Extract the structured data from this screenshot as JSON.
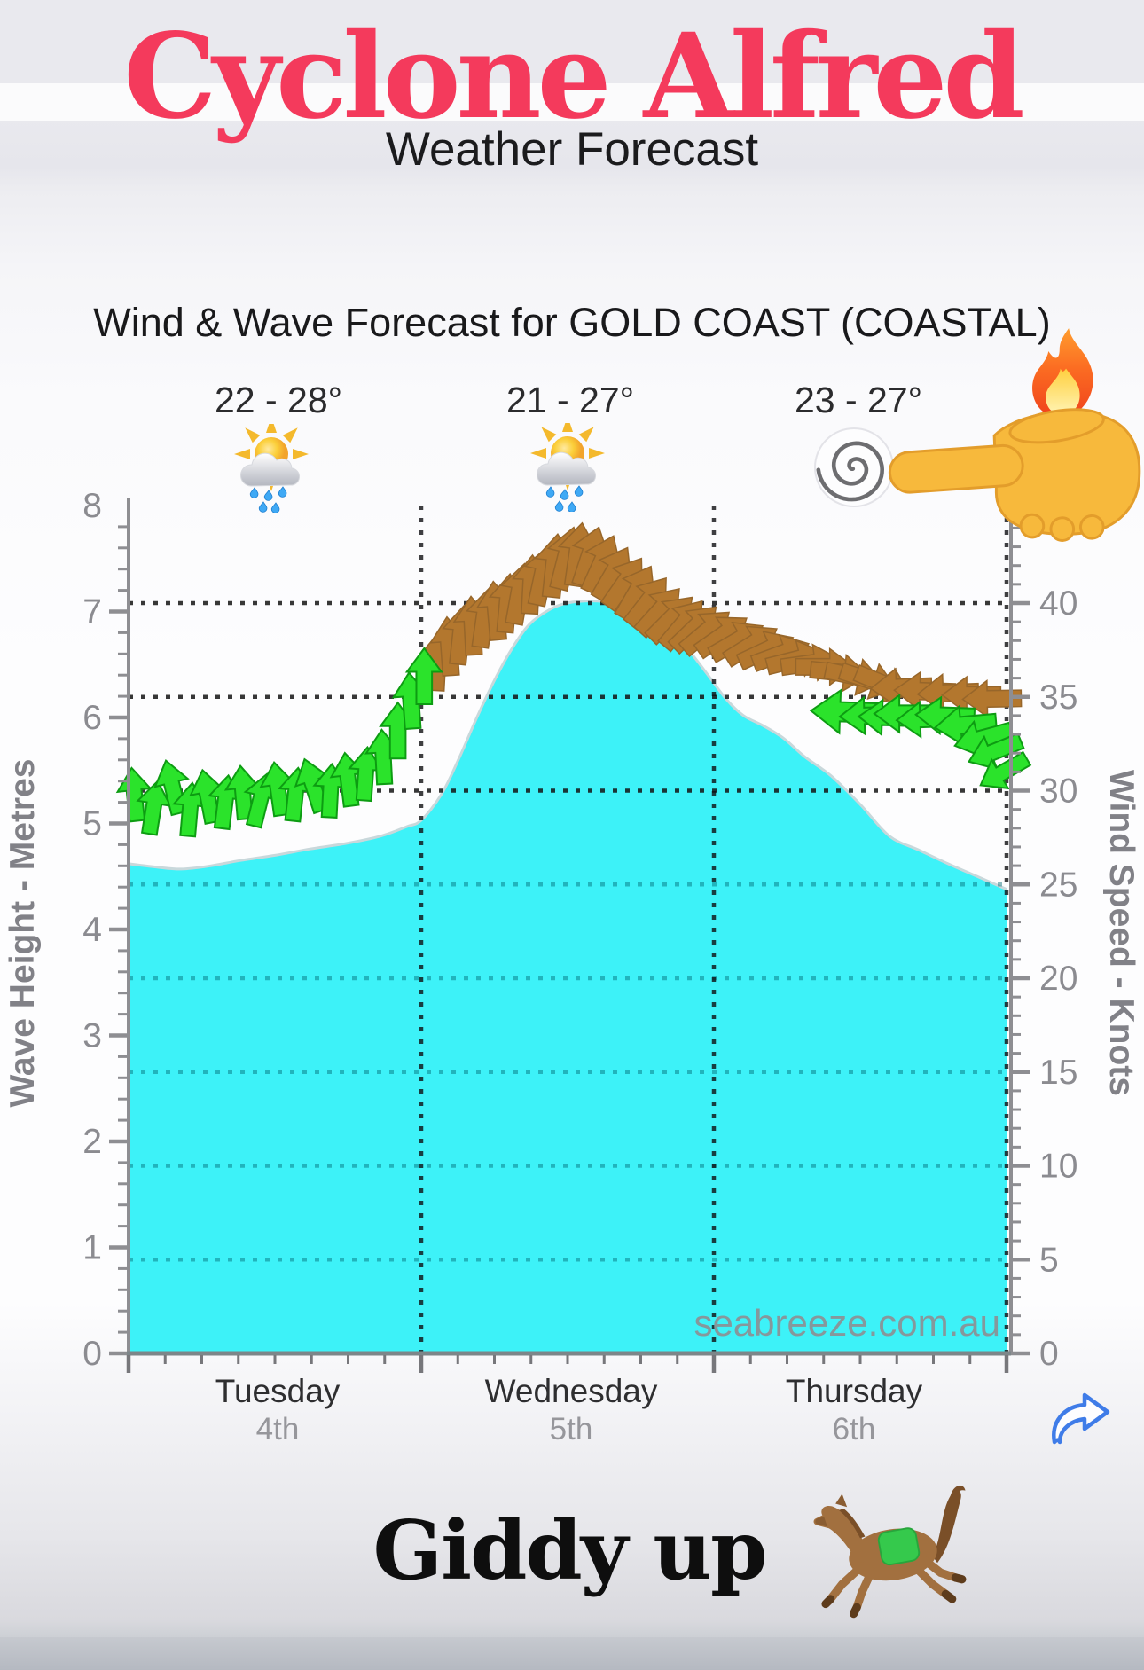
{
  "header": {
    "title": "Cyclone Alfred",
    "subtitle": "Weather Forecast",
    "title_color": "#f43a5c"
  },
  "chart": {
    "title": "Wind & Wave Forecast for GOLD COAST (COASTAL)",
    "watermark": "seabreeze.com.au",
    "days": [
      {
        "name": "Tuesday",
        "date": "4th",
        "temp": "22 - 28°",
        "icon": "sun-behind-rain-cloud"
      },
      {
        "name": "Wednesday",
        "date": "5th",
        "temp": "21 - 27°",
        "icon": "sun-behind-rain-cloud"
      },
      {
        "name": "Thursday",
        "date": "6th",
        "temp": "23 - 27°",
        "icon": "cyclone"
      }
    ],
    "decorations": [
      "fire-emoji",
      "backhand-index-pointing-left-emoji"
    ]
  },
  "footer": {
    "caption": "Giddy up",
    "emoji": "horse-galloping"
  },
  "colors": {
    "wave_fill": "#3DF2F8",
    "wave_edge": "#c9d8db",
    "arrow_green": "#2BE32B",
    "arrow_green_edge": "#0d9c12",
    "arrow_brown": "#B3772E",
    "arrow_brown_edge": "#97662a",
    "grid_black": "rgba(20,20,20,0.85)",
    "grid_teal": "rgba(0,105,115,0.45)",
    "axis_gray": "#8e8e92",
    "label_gray": "#8b8b90",
    "baseline": "#7d8689",
    "share_blue": "#3f7ce8"
  },
  "chart_data": {
    "type": "area",
    "title": "Wind & Wave Forecast for GOLD COAST (COASTAL)",
    "x_axis": {
      "labels": [
        "Tuesday",
        "Wednesday",
        "Thursday"
      ],
      "dates": [
        "4th",
        "5th",
        "6th"
      ],
      "domain_days": [
        0,
        3
      ]
    },
    "left_axis": {
      "label": "Wave Height - Metres",
      "min": 0,
      "max": 8,
      "major_tick": 1,
      "minor_tick": 0.2,
      "ticks": [
        0,
        1,
        2,
        3,
        4,
        5,
        6,
        7,
        8
      ]
    },
    "right_axis": {
      "label": "Wind Speed - Knots",
      "min": 0,
      "max": 45,
      "major_tick": 5,
      "minor_tick": 1,
      "ticks": [
        0,
        5,
        10,
        15,
        20,
        25,
        30,
        35,
        40
      ]
    },
    "gridlines": {
      "knots_black_dotted": [
        40,
        35,
        30
      ],
      "knots_teal_dotted": [
        25,
        20,
        15,
        10,
        5
      ],
      "day_separators": [
        1,
        2,
        3
      ]
    },
    "wave_series": {
      "name": "Wave Height (metres)",
      "points_day_metres": [
        [
          0,
          4.62
        ],
        [
          0.09,
          4.59
        ],
        [
          0.18,
          4.57
        ],
        [
          0.28,
          4.6
        ],
        [
          0.38,
          4.65
        ],
        [
          0.5,
          4.7
        ],
        [
          0.62,
          4.76
        ],
        [
          0.74,
          4.81
        ],
        [
          0.86,
          4.88
        ],
        [
          0.95,
          4.97
        ],
        [
          1.0,
          5.03
        ],
        [
          1.07,
          5.28
        ],
        [
          1.13,
          5.62
        ],
        [
          1.19,
          6.0
        ],
        [
          1.25,
          6.35
        ],
        [
          1.31,
          6.65
        ],
        [
          1.37,
          6.88
        ],
        [
          1.44,
          7.02
        ],
        [
          1.5,
          7.08
        ],
        [
          1.58,
          7.1
        ],
        [
          1.65,
          7.08
        ],
        [
          1.71,
          7.0
        ],
        [
          1.76,
          6.93
        ],
        [
          1.82,
          6.9
        ],
        [
          1.87,
          6.77
        ],
        [
          1.93,
          6.58
        ],
        [
          1.98,
          6.4
        ],
        [
          2.04,
          6.18
        ],
        [
          2.1,
          6.02
        ],
        [
          2.17,
          5.92
        ],
        [
          2.24,
          5.8
        ],
        [
          2.31,
          5.63
        ],
        [
          2.4,
          5.45
        ],
        [
          2.5,
          5.18
        ],
        [
          2.6,
          4.88
        ],
        [
          2.7,
          4.75
        ],
        [
          2.8,
          4.62
        ],
        [
          2.9,
          4.5
        ],
        [
          3.0,
          4.38
        ]
      ]
    },
    "wind_series": {
      "name": "Wind speed + direction arrows (day, knots, direction_deg(0=up), color g=green b=brown, size)",
      "arrows": [
        [
          1.055,
          36.9,
          3,
          "b",
          1
        ],
        [
          1.095,
          37.7,
          -4,
          "b",
          1
        ],
        [
          1.135,
          38.3,
          6,
          "b",
          1
        ],
        [
          1.175,
          38.8,
          -3,
          "b",
          1
        ],
        [
          1.215,
          39.2,
          8,
          "b",
          1
        ],
        [
          1.255,
          39.6,
          -5,
          "b",
          1
        ],
        [
          1.295,
          40.0,
          5,
          "b",
          1
        ],
        [
          1.335,
          40.5,
          10,
          "b",
          1.04
        ],
        [
          1.375,
          41.0,
          3,
          "b",
          1
        ],
        [
          1.415,
          41.5,
          12,
          "b",
          1.04
        ],
        [
          1.455,
          42.0,
          6,
          "b",
          1.08
        ],
        [
          1.495,
          42.4,
          14,
          "b",
          1.08
        ],
        [
          1.535,
          42.6,
          8,
          "b",
          1.08
        ],
        [
          1.575,
          42.5,
          18,
          "b",
          1.04
        ],
        [
          1.615,
          42.1,
          24,
          "b",
          1.04
        ],
        [
          1.655,
          41.6,
          30,
          "b",
          1
        ],
        [
          1.695,
          41.1,
          35,
          "b",
          1
        ],
        [
          1.735,
          40.6,
          30,
          "b",
          1
        ],
        [
          1.775,
          40.1,
          38,
          "b",
          1
        ],
        [
          1.815,
          39.6,
          42,
          "b",
          1
        ],
        [
          1.855,
          39.2,
          45,
          "b",
          1
        ],
        [
          1.895,
          38.9,
          40,
          "b",
          1
        ],
        [
          1.935,
          38.7,
          46,
          "b",
          1
        ],
        [
          1.975,
          38.5,
          50,
          "b",
          1
        ],
        [
          2.03,
          38.3,
          55,
          "b",
          1
        ],
        [
          2.08,
          38.0,
          60,
          "b",
          1
        ],
        [
          2.13,
          37.8,
          58,
          "b",
          1
        ],
        [
          2.18,
          37.5,
          65,
          "b",
          1
        ],
        [
          2.23,
          37.3,
          70,
          "b",
          1
        ],
        [
          2.28,
          37.0,
          76,
          "b",
          1
        ],
        [
          2.33,
          36.8,
          82,
          "b",
          1
        ],
        [
          2.38,
          36.6,
          90,
          "b",
          1
        ],
        [
          2.43,
          36.3,
          96,
          "b",
          1
        ],
        [
          2.48,
          36.1,
          102,
          "b",
          1
        ],
        [
          2.53,
          35.9,
          108,
          "b",
          1
        ],
        [
          2.58,
          35.7,
          112,
          "b",
          1
        ],
        [
          2.64,
          35.5,
          268,
          "b",
          1.04
        ],
        [
          2.72,
          35.3,
          272,
          "b",
          1.04
        ],
        [
          2.8,
          35.2,
          268,
          "b",
          1.04
        ],
        [
          2.88,
          35.1,
          270,
          "b",
          1
        ],
        [
          2.95,
          34.9,
          269,
          "b",
          1
        ],
        [
          0.02,
          29.8,
          -6,
          "g",
          1
        ],
        [
          0.085,
          29.1,
          9,
          "g",
          1
        ],
        [
          0.15,
          30.2,
          -14,
          "g",
          1.02
        ],
        [
          0.21,
          29.0,
          5,
          "g",
          1
        ],
        [
          0.27,
          29.7,
          -11,
          "g",
          1
        ],
        [
          0.33,
          29.4,
          7,
          "g",
          1
        ],
        [
          0.39,
          29.9,
          -5,
          "g",
          1
        ],
        [
          0.45,
          29.5,
          14,
          "g",
          1
        ],
        [
          0.51,
          30.1,
          -8,
          "g",
          1
        ],
        [
          0.57,
          29.8,
          6,
          "g",
          1
        ],
        [
          0.63,
          30.3,
          -18,
          "g",
          1.02
        ],
        [
          0.69,
          30.0,
          3,
          "g",
          1
        ],
        [
          0.75,
          30.6,
          -7,
          "g",
          1
        ],
        [
          0.81,
          30.9,
          4,
          "g",
          1
        ],
        [
          0.87,
          31.8,
          -3,
          "g",
          1.02
        ],
        [
          0.92,
          33.2,
          0,
          "g",
          1.05
        ],
        [
          0.965,
          34.8,
          -4,
          "g",
          1.05
        ],
        [
          1.01,
          36.1,
          0,
          "g",
          1.05
        ],
        [
          2.45,
          34.2,
          272,
          "g",
          1.3
        ],
        [
          2.53,
          34.0,
          268,
          "g",
          1.1
        ],
        [
          2.59,
          33.9,
          272,
          "g",
          1.05
        ],
        [
          2.65,
          34.1,
          270,
          "g",
          1.12
        ],
        [
          2.72,
          33.8,
          268,
          "g",
          1.05
        ],
        [
          2.79,
          34.0,
          272,
          "g",
          1.1
        ],
        [
          2.86,
          33.5,
          265,
          "g",
          1.15
        ],
        [
          2.92,
          32.8,
          255,
          "g",
          1.1
        ],
        [
          2.96,
          32.1,
          248,
          "g",
          1.05
        ],
        [
          2.99,
          31.0,
          240,
          "g",
          1
        ]
      ]
    },
    "annotations": {
      "temps": [
        "22 - 28°",
        "21 - 27°",
        "23 - 27°"
      ],
      "watermark": "seabreeze.com.au"
    },
    "legend": "none",
    "grid": "dotted"
  }
}
